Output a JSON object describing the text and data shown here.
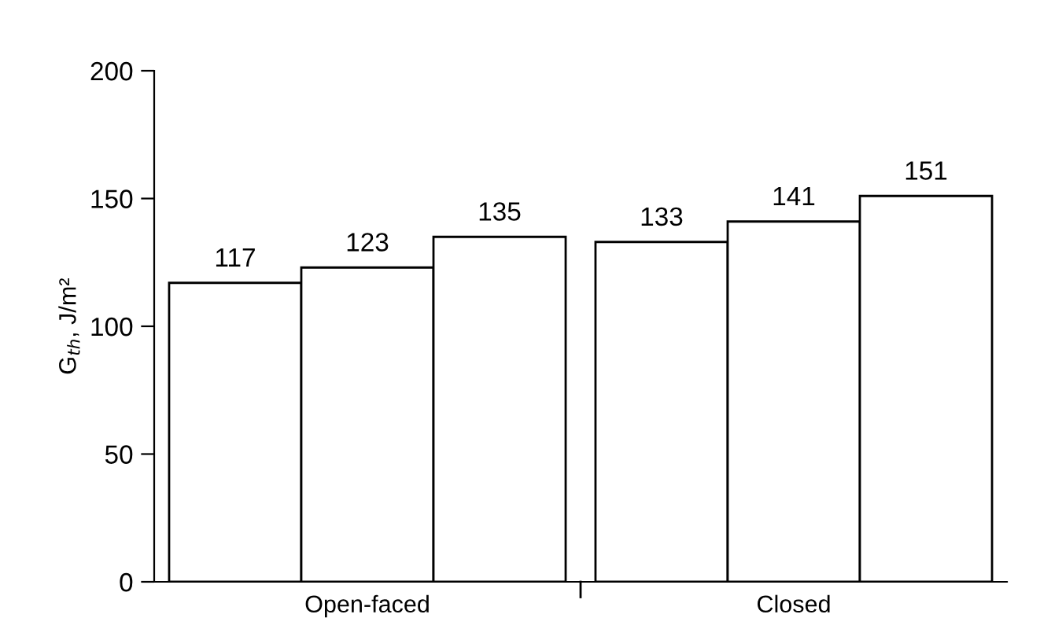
{
  "chart_data": {
    "type": "bar",
    "ylabel": "G$_{th}$, J/m²",
    "categories": [
      "Open-faced",
      "Closed"
    ],
    "series": [
      {
        "color": "#ffffff",
        "values": [
          117,
          133
        ]
      },
      {
        "color": "#ffffff",
        "values": [
          123,
          141
        ]
      },
      {
        "color": "#ffffff",
        "values": [
          135,
          151
        ]
      }
    ],
    "ylim": [
      0,
      200
    ],
    "yticks": [
      0,
      50,
      100,
      150,
      200
    ],
    "data_labels": true,
    "grid": false,
    "legend": false
  }
}
